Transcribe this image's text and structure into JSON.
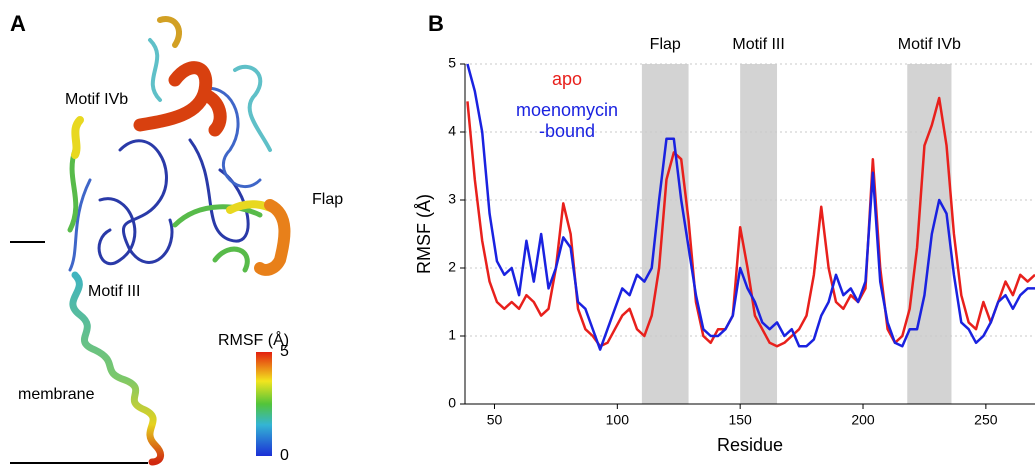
{
  "panel_a": {
    "label": "A",
    "annotations": [
      "Motif IVb",
      "Flap",
      "Motif III",
      "membrane"
    ],
    "colorbar": {
      "label": "RMSF (Å)",
      "ticks": [
        0,
        5
      ]
    }
  },
  "chart_data": {
    "type": "line",
    "panel_label": "B",
    "x_label": "Residue",
    "y_label": "RMSF (Å)",
    "xlim": [
      38,
      270
    ],
    "ylim": [
      0,
      5
    ],
    "xticks": [
      50,
      100,
      150,
      200,
      250
    ],
    "yticks": [
      0,
      1,
      2,
      3,
      4,
      5
    ],
    "grid": true,
    "regions": [
      {
        "label": "Flap",
        "start": 110,
        "end": 129
      },
      {
        "label": "Motif III",
        "start": 150,
        "end": 165
      },
      {
        "label": "Motif IVb",
        "start": 218,
        "end": 236
      }
    ],
    "x": [
      39,
      42,
      45,
      48,
      51,
      54,
      57,
      60,
      63,
      66,
      69,
      72,
      75,
      78,
      81,
      84,
      87,
      90,
      93,
      96,
      99,
      102,
      105,
      108,
      111,
      114,
      117,
      120,
      123,
      126,
      129,
      132,
      135,
      138,
      141,
      144,
      147,
      150,
      153,
      156,
      159,
      162,
      165,
      168,
      171,
      174,
      177,
      180,
      183,
      186,
      189,
      192,
      195,
      198,
      201,
      204,
      207,
      210,
      213,
      216,
      219,
      222,
      225,
      228,
      231,
      234,
      237,
      240,
      243,
      246,
      249,
      252,
      255,
      258,
      261,
      264,
      267,
      270
    ],
    "series": [
      {
        "name": "apo",
        "color": "#e8201c",
        "values": [
          4.45,
          3.3,
          2.4,
          1.8,
          1.5,
          1.4,
          1.5,
          1.4,
          1.6,
          1.5,
          1.3,
          1.4,
          2.0,
          2.95,
          2.5,
          1.4,
          1.1,
          1.0,
          0.85,
          0.9,
          1.1,
          1.3,
          1.4,
          1.1,
          1.0,
          1.3,
          2.0,
          3.3,
          3.7,
          3.6,
          2.7,
          1.5,
          1.0,
          0.9,
          1.1,
          1.1,
          1.3,
          2.6,
          2.0,
          1.3,
          1.1,
          0.9,
          0.85,
          0.9,
          1.0,
          1.1,
          1.3,
          1.9,
          2.9,
          2.0,
          1.5,
          1.4,
          1.6,
          1.5,
          1.7,
          3.6,
          2.0,
          1.1,
          0.9,
          1.0,
          1.4,
          2.3,
          3.8,
          4.1,
          4.5,
          3.8,
          2.5,
          1.6,
          1.2,
          1.1,
          1.5,
          1.2,
          1.5,
          1.8,
          1.6,
          1.9,
          1.8,
          1.9
        ]
      },
      {
        "name": "moenomycin-bound",
        "color": "#1a22e0",
        "values": [
          5.0,
          4.6,
          4.0,
          2.8,
          2.1,
          1.9,
          2.0,
          1.6,
          2.4,
          1.8,
          2.5,
          1.7,
          2.0,
          2.45,
          2.3,
          1.5,
          1.4,
          1.1,
          0.8,
          1.1,
          1.4,
          1.7,
          1.6,
          1.9,
          1.8,
          2.0,
          3.0,
          3.9,
          3.9,
          3.0,
          2.3,
          1.6,
          1.1,
          1.0,
          1.0,
          1.1,
          1.3,
          2.0,
          1.7,
          1.5,
          1.2,
          1.1,
          1.2,
          1.0,
          1.1,
          0.85,
          0.85,
          0.95,
          1.3,
          1.5,
          1.9,
          1.6,
          1.7,
          1.5,
          1.8,
          3.4,
          1.8,
          1.2,
          0.9,
          0.85,
          1.1,
          1.1,
          1.6,
          2.5,
          3.0,
          2.8,
          1.9,
          1.2,
          1.1,
          0.9,
          1.0,
          1.2,
          1.5,
          1.6,
          1.4,
          1.6,
          1.7,
          1.7
        ]
      }
    ]
  }
}
